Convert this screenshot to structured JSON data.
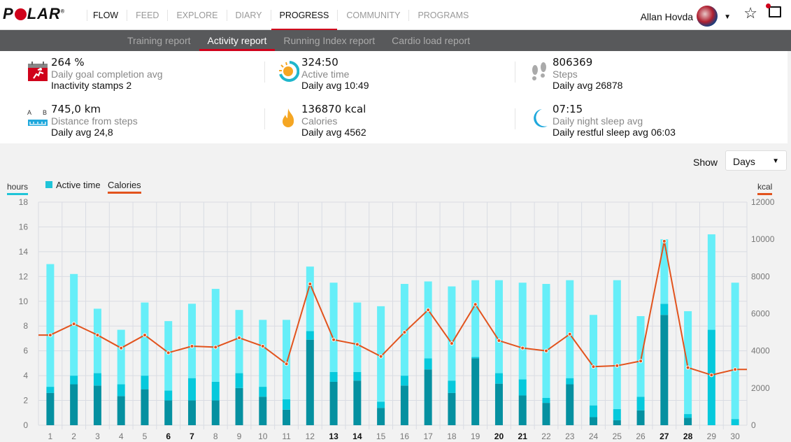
{
  "header": {
    "logo": "POLAR",
    "nav": [
      "FLOW",
      "FEED",
      "EXPLORE",
      "DIARY",
      "PROGRESS",
      "COMMUNITY",
      "PROGRAMS"
    ],
    "active_nav": "PROGRESS",
    "user": "Allan Hovda"
  },
  "subnav": {
    "items": [
      "Training report",
      "Activity report",
      "Running Index report",
      "Cardio load report"
    ],
    "active": "Activity report"
  },
  "stats": [
    {
      "value": "264 %",
      "label": "Daily goal completion avg",
      "sub": "Inactivity stamps 2",
      "icon": "calendar-run-icon"
    },
    {
      "value": "324:50",
      "label": "Active time",
      "sub": "Daily avg 10:49",
      "icon": "active-time-icon"
    },
    {
      "value": "806369",
      "label": "Steps",
      "sub": "Daily avg 26878",
      "icon": "footsteps-icon"
    },
    {
      "value": "745,0 km",
      "label": "Distance from steps",
      "sub": "Daily avg 24,8",
      "icon": "ruler-icon"
    },
    {
      "value": "136870 kcal",
      "label": "Calories",
      "sub": "Daily avg 4562",
      "icon": "flame-icon"
    },
    {
      "value": "07:15",
      "label": "Daily night sleep avg",
      "sub": "Daily restful sleep avg 06:03",
      "icon": "moon-icon"
    }
  ],
  "controls": {
    "show_label": "Show",
    "show_value": "Days"
  },
  "chart_data": {
    "type": "bar+line",
    "left_axis_label": "hours",
    "right_axis_label": "kcal",
    "legend": [
      "Active time",
      "Calories"
    ],
    "ylim_left": [
      0,
      18
    ],
    "yticks_left": [
      0,
      2,
      4,
      6,
      8,
      10,
      12,
      14,
      16,
      18
    ],
    "ylim_right": [
      0,
      12000
    ],
    "yticks_right": [
      0,
      2000,
      4000,
      6000,
      8000,
      10000,
      12000
    ],
    "categories": [
      "1",
      "2",
      "3",
      "4",
      "5",
      "6",
      "7",
      "8",
      "9",
      "10",
      "11",
      "12",
      "13",
      "14",
      "15",
      "16",
      "17",
      "18",
      "19",
      "20",
      "21",
      "22",
      "23",
      "24",
      "25",
      "26",
      "27",
      "28",
      "29",
      "30"
    ],
    "bold_categories": [
      "6",
      "7",
      "13",
      "14",
      "20",
      "21",
      "27",
      "28"
    ],
    "series": [
      {
        "name": "Active time high (hours)",
        "values": [
          2.6,
          3.3,
          3.2,
          2.35,
          2.9,
          2.0,
          2.0,
          2.0,
          3.0,
          2.3,
          1.25,
          6.9,
          3.5,
          3.6,
          1.4,
          3.2,
          4.5,
          2.6,
          5.4,
          3.35,
          2.4,
          1.8,
          3.3,
          0.65,
          0.4,
          1.2,
          8.9,
          0.6,
          0,
          0
        ]
      },
      {
        "name": "Active time medium (hours)",
        "values": [
          0.5,
          0.7,
          1.0,
          0.95,
          1.1,
          0.8,
          1.8,
          1.5,
          1.2,
          0.8,
          0.85,
          0.7,
          0.8,
          0.7,
          0.5,
          0.8,
          0.9,
          1.0,
          0.1,
          0.85,
          1.3,
          0.4,
          0.5,
          0.95,
          0.9,
          1.1,
          0.9,
          0.3,
          7.7,
          0.5
        ]
      },
      {
        "name": "Active time low (hours)",
        "values": [
          9.9,
          8.2,
          5.2,
          4.4,
          5.9,
          5.6,
          6.0,
          7.5,
          5.1,
          5.4,
          6.4,
          5.2,
          7.2,
          5.6,
          7.7,
          7.4,
          6.2,
          7.6,
          6.2,
          7.5,
          7.8,
          9.2,
          7.9,
          7.3,
          10.4,
          6.5,
          5.2,
          8.3,
          7.7,
          11.0
        ]
      },
      {
        "name": "Calories (kcal)",
        "values": [
          4850,
          5450,
          4850,
          4150,
          4850,
          3900,
          4250,
          4200,
          4700,
          4250,
          3300,
          7600,
          4600,
          4350,
          3700,
          5000,
          6200,
          4400,
          6500,
          4550,
          4150,
          4000,
          4900,
          3150,
          3200,
          3450,
          9900,
          3100,
          2700,
          3000
        ]
      }
    ],
    "colors": {
      "high": "#0590a0",
      "medium": "#06c9dc",
      "low": "#66eef8",
      "calories": "#e2531d"
    }
  }
}
